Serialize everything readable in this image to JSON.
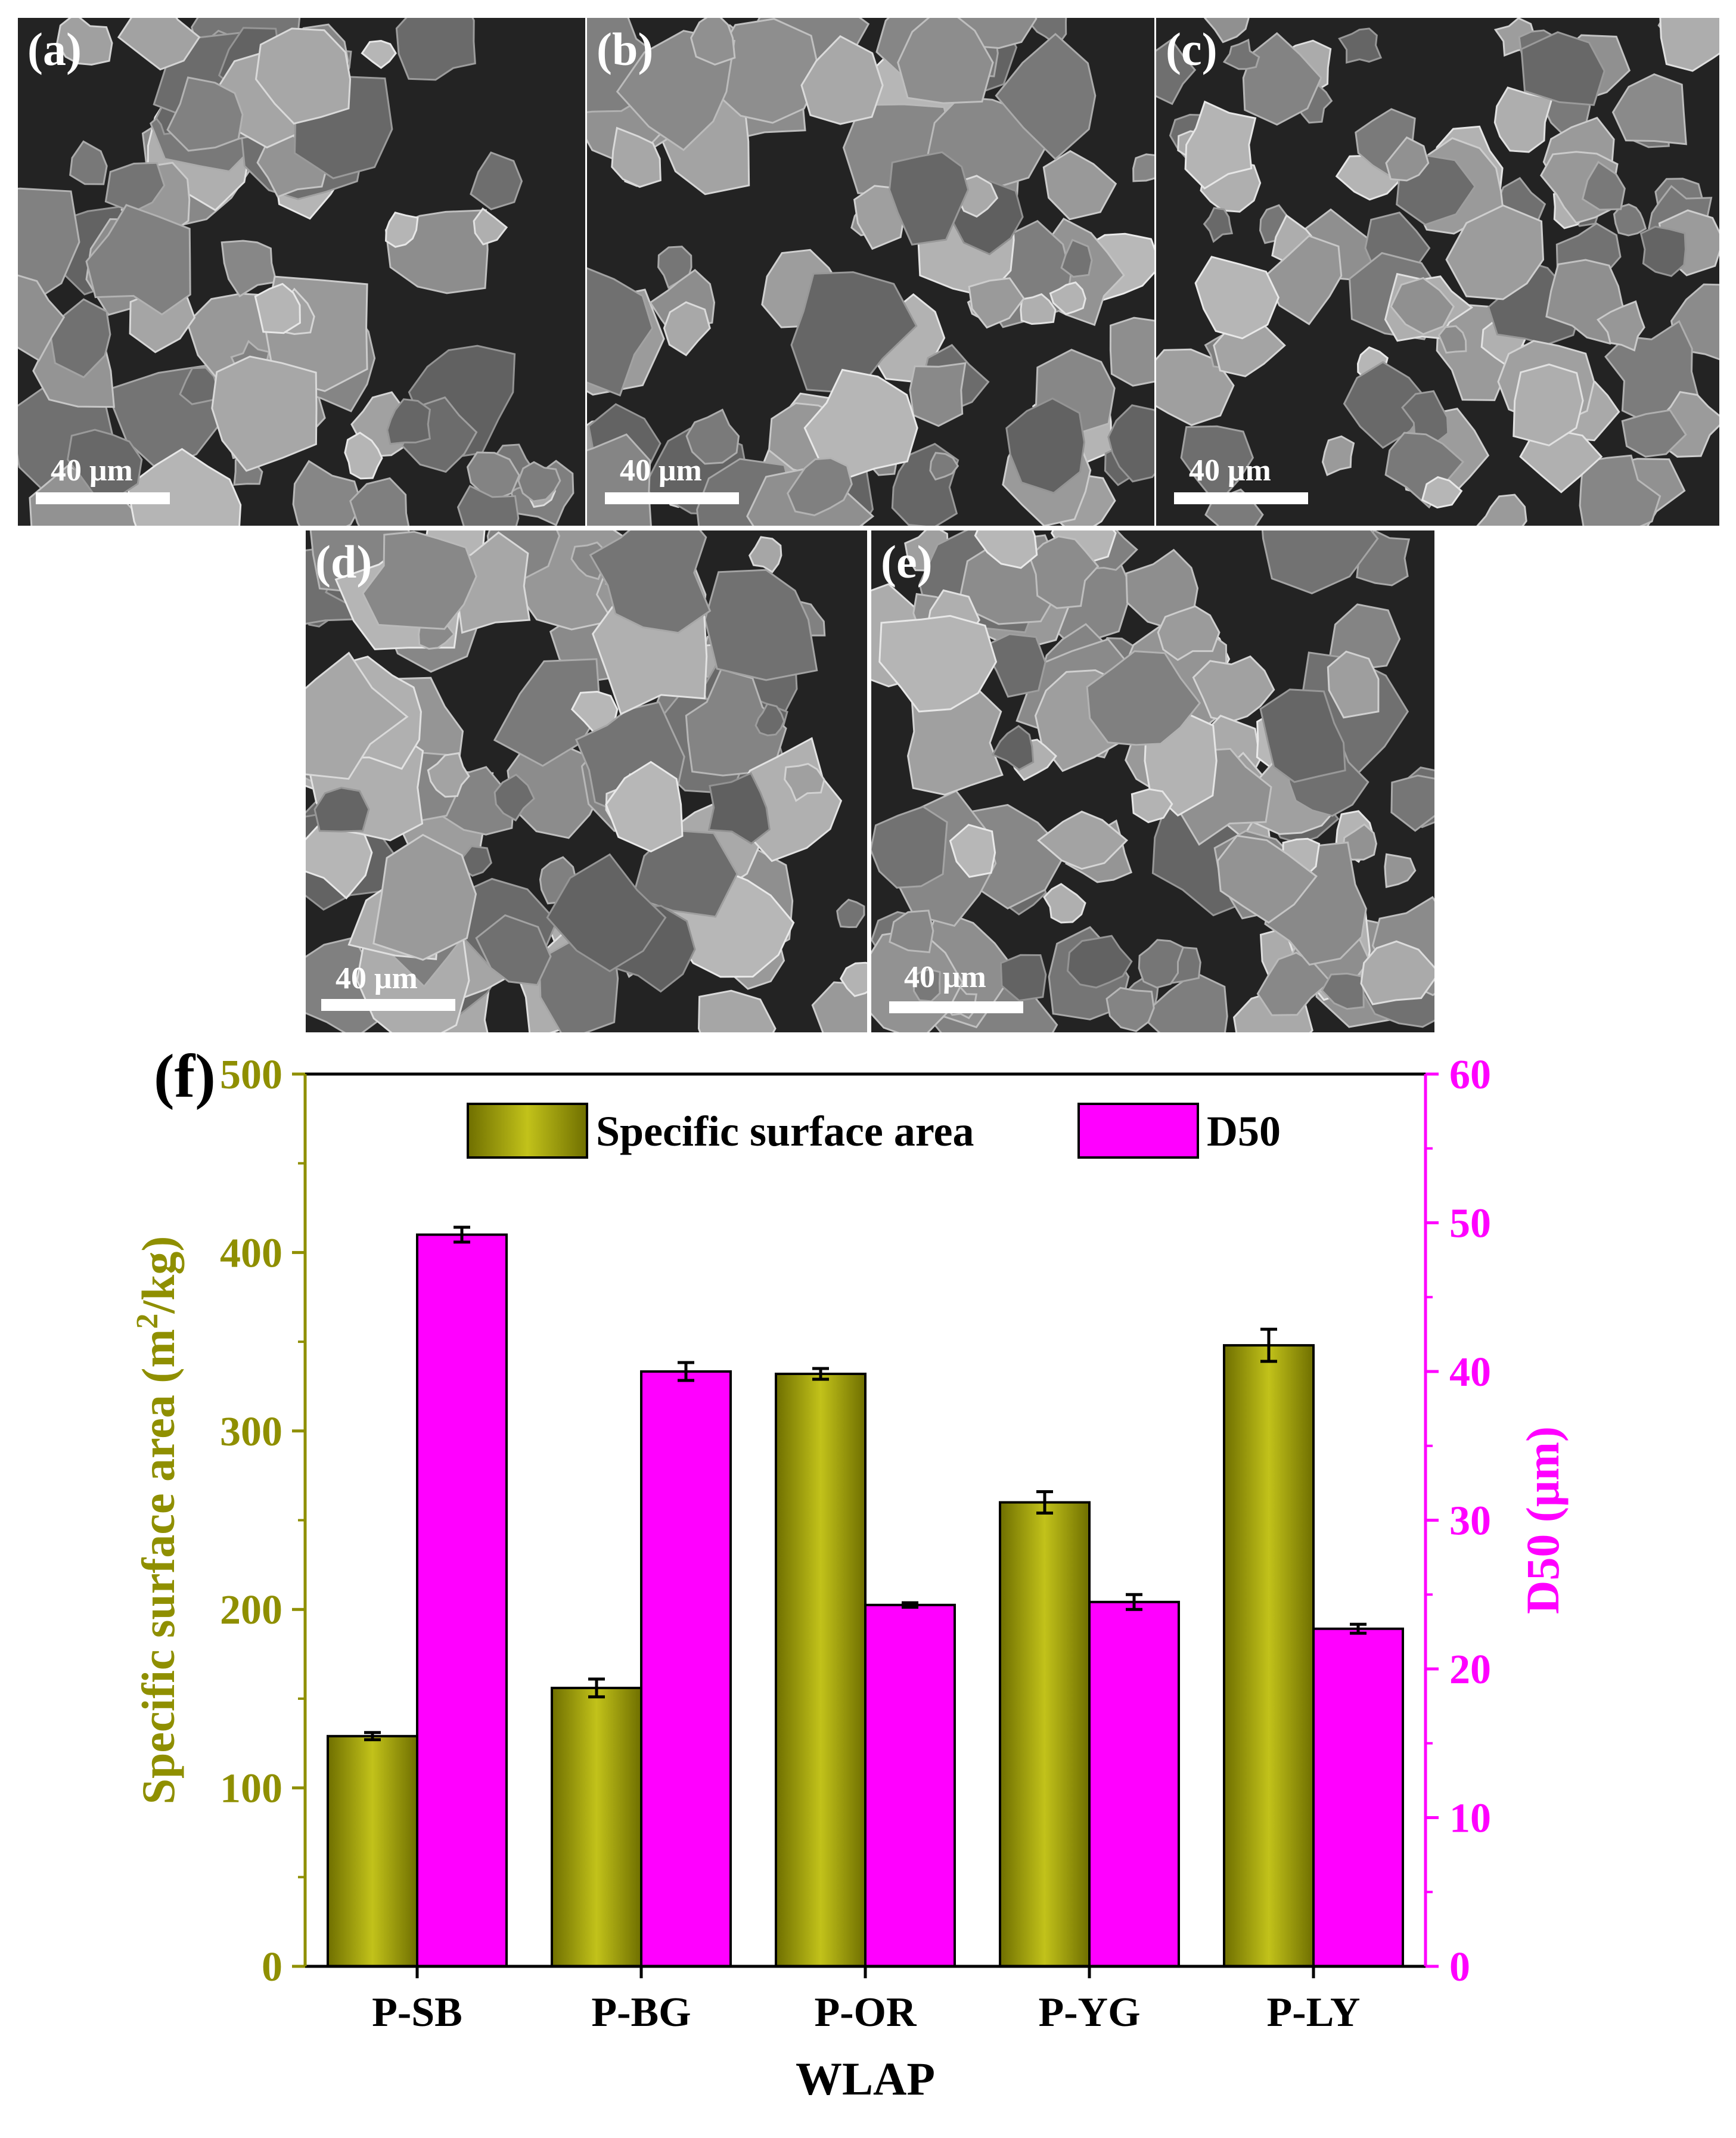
{
  "micrographs": [
    {
      "label": "(a)",
      "scale": "40 μm"
    },
    {
      "label": "(b)",
      "scale": "40 μm"
    },
    {
      "label": "(c)",
      "scale": "40 μm"
    },
    {
      "label": "(d)",
      "scale": "40 μm"
    },
    {
      "label": "(e)",
      "scale": "40 μm"
    }
  ],
  "chart_data": {
    "type": "bar",
    "panel_label": "(f)",
    "categories": [
      "P-SB",
      "P-BG",
      "P-OR",
      "P-YG",
      "P-LY"
    ],
    "xlabel": "WLAP",
    "series": [
      {
        "name": "Specific surface area",
        "axis": "left",
        "color": "#8f8f00",
        "values": [
          129,
          156,
          332,
          260,
          348
        ],
        "errors": [
          2,
          5,
          3,
          6,
          9
        ]
      },
      {
        "name": "D50",
        "axis": "right",
        "color": "#ff00ff",
        "values": [
          49.2,
          40.0,
          24.3,
          24.5,
          22.7
        ],
        "errors": [
          0.5,
          0.6,
          0.15,
          0.5,
          0.3
        ]
      }
    ],
    "left_axis": {
      "label_main": "Specific surface area (m",
      "label_sup": "2",
      "label_end": "/kg)",
      "ylim": [
        0,
        500
      ],
      "ticks": [
        "0",
        "100",
        "200",
        "300",
        "400",
        "500"
      ],
      "color": "#8f8f00"
    },
    "right_axis": {
      "label": "D50 (μm)",
      "ylim": [
        0,
        60
      ],
      "ticks": [
        "0",
        "10",
        "20",
        "30",
        "40",
        "50",
        "60"
      ],
      "color": "#ff00ff"
    },
    "legend": {
      "placement": "top-center"
    }
  }
}
